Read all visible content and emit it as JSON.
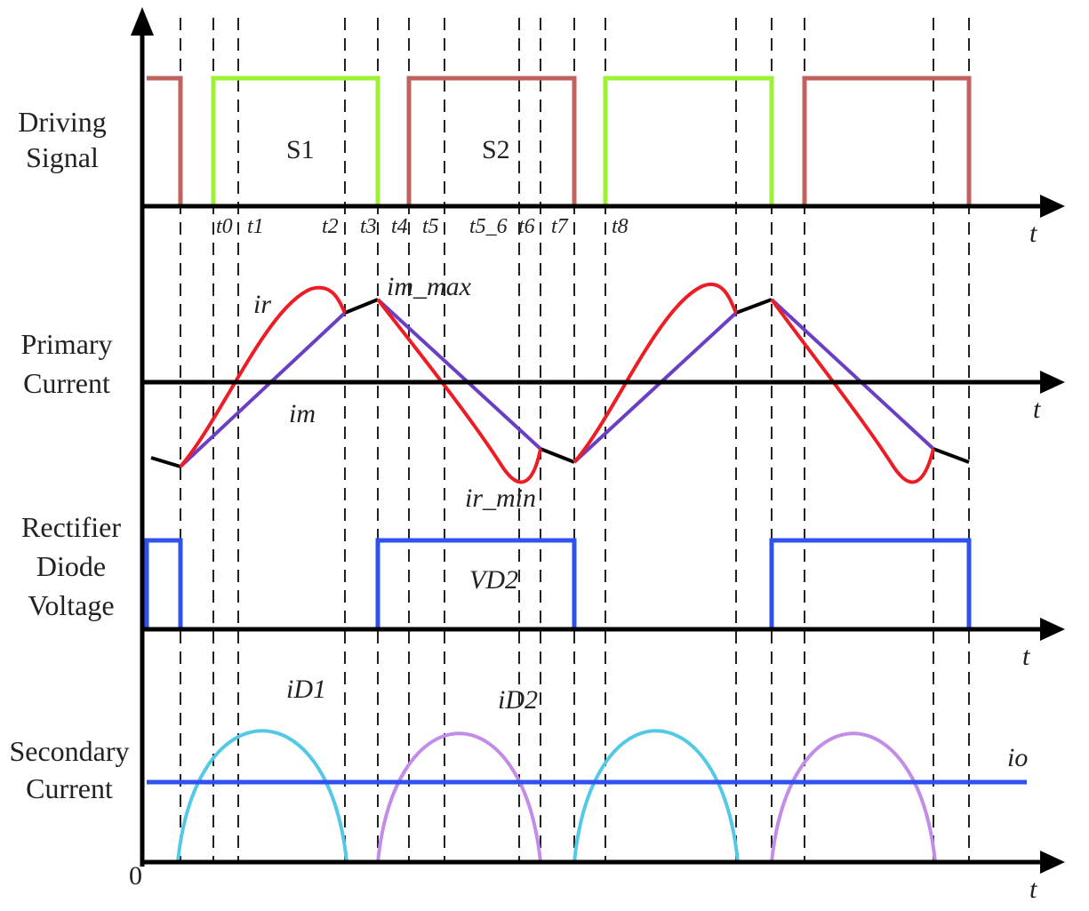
{
  "rows": {
    "driving": [
      "Driving",
      "Signal"
    ],
    "primary": [
      "Primary",
      "Current"
    ],
    "rectifier": [
      "Rectifier",
      "Diode",
      "Voltage"
    ],
    "secondary": [
      "Secondary",
      "Current"
    ]
  },
  "axis_t_label": "t",
  "origin_label": "0",
  "time_ticks": [
    "t0",
    "t1",
    "t2",
    "t3",
    "t4",
    "t5",
    "t5_6",
    "t6",
    "t7",
    "t8"
  ],
  "signals": {
    "s1": "S1",
    "s2": "S2",
    "ir": "ir",
    "im": "im",
    "im_max": "im_max",
    "ir_min": "ir_min",
    "vd2": "VD2",
    "id1": "iD1",
    "id2": "iD2",
    "io": "io"
  },
  "colors": {
    "s1": "#9ef235",
    "s2": "#c0625f",
    "ir": "#ee1c24",
    "im": "#6b3fc4",
    "vd": "#2f52ef",
    "id1": "#54c9e6",
    "id2": "#c28de8",
    "io": "#2f52ef",
    "axis": "#000000"
  }
}
